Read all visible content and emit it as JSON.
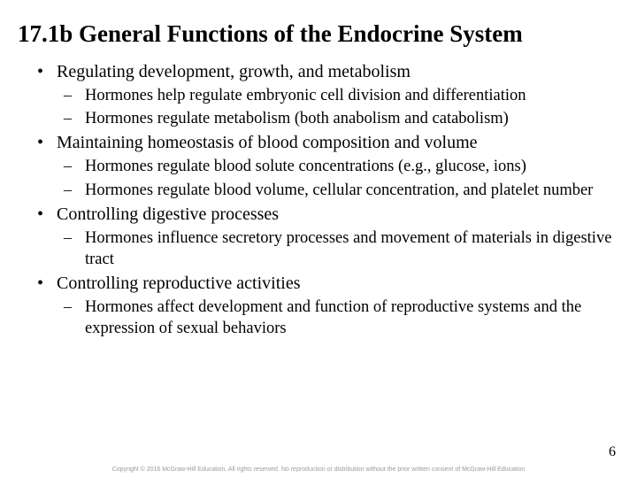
{
  "title": "17.1b General Functions of the Endocrine System",
  "bullets": [
    {
      "text": "Regulating development, growth, and metabolism",
      "sub": [
        "Hormones help regulate embryonic cell division and differentiation",
        "Hormones regulate metabolism (both anabolism and catabolism)"
      ]
    },
    {
      "text": "Maintaining homeostasis of blood composition and volume",
      "sub": [
        "Hormones regulate blood solute concentrations (e.g., glucose, ions)",
        "Hormones regulate blood volume, cellular concentration, and platelet number"
      ]
    },
    {
      "text": "Controlling digestive processes",
      "sub": [
        "Hormones influence secretory processes and movement of materials in digestive tract"
      ]
    },
    {
      "text": "Controlling reproductive activities",
      "sub": [
        "Hormones affect development and function of reproductive systems and the expression of sexual behaviors"
      ]
    }
  ],
  "pageNumber": "6",
  "copyright": "Copyright © 2016 McGraw-Hill Education. All rights reserved. No reproduction or distribution without the prior written consent of McGraw-Hill Education"
}
